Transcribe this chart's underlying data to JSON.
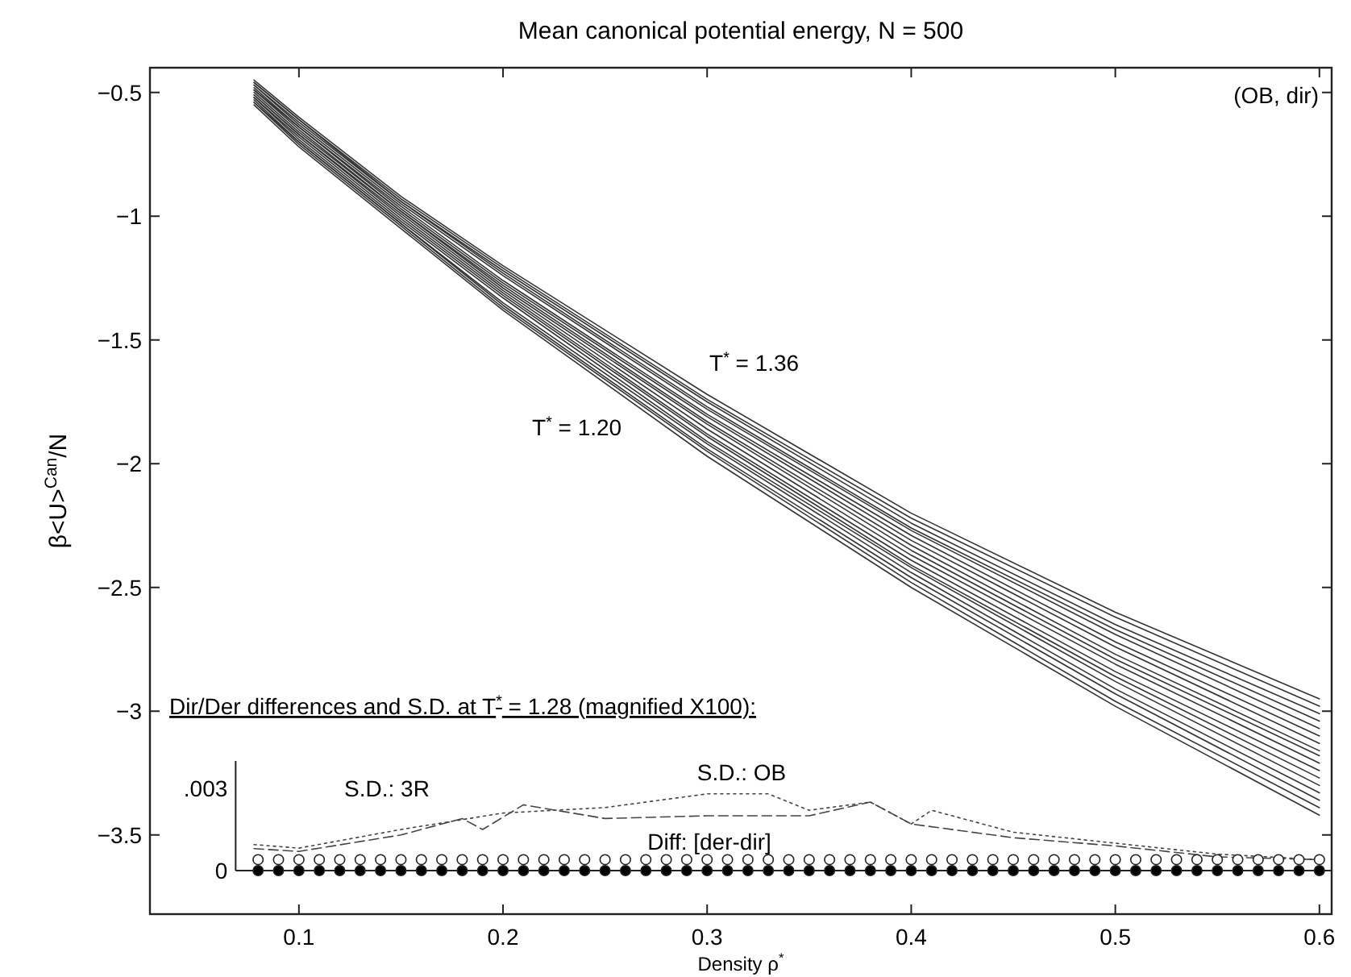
{
  "chart_data": [
    {
      "type": "line",
      "title": "Mean canonical potential energy, N = 500",
      "xlabel": "Density ρ$^{*}$",
      "ylabel": "β<U>$^{Can}$/N",
      "x": [
        0.078,
        0.1,
        0.15,
        0.2,
        0.3,
        0.4,
        0.5,
        0.6
      ],
      "xlim": [
        0.027,
        0.606
      ],
      "ylim": [
        -3.82,
        -0.4
      ],
      "xticks": [
        0.1,
        0.2,
        0.3,
        0.4,
        0.5,
        0.6
      ],
      "yticks": [
        {
          "value": -0.5,
          "label": "−0.5"
        },
        {
          "value": -1,
          "label": "−1"
        },
        {
          "value": -1.5,
          "label": "−1.5"
        },
        {
          "value": -2,
          "label": "−2"
        },
        {
          "value": -2.5,
          "label": "−2.5"
        },
        {
          "value": -3,
          "label": "−3"
        },
        {
          "value": -3.5,
          "label": "−3.5"
        }
      ],
      "grid": false,
      "line_style": "solid",
      "marker": "none",
      "annotations": [
        "(OB, dir)",
        "T$^{*}$ = 1.36",
        "T$^{*}$ = 1.20"
      ],
      "series": [
        {
          "color": "#333333",
          "values": [
            -0.55,
            -0.72,
            -1.05,
            -1.38,
            -1.97,
            -2.5,
            -2.98,
            -3.42
          ]
        },
        {
          "color": "#333333",
          "values": [
            -0.54,
            -0.71,
            -1.04,
            -1.37,
            -1.95,
            -2.48,
            -2.96,
            -3.39
          ]
        },
        {
          "color": "#333333",
          "values": [
            -0.54,
            -0.7,
            -1.03,
            -1.36,
            -1.94,
            -2.46,
            -2.93,
            -3.36
          ]
        },
        {
          "color": "#333333",
          "values": [
            -0.53,
            -0.7,
            -1.03,
            -1.35,
            -1.92,
            -2.44,
            -2.91,
            -3.33
          ]
        },
        {
          "color": "#333333",
          "values": [
            -0.52,
            -0.69,
            -1.02,
            -1.33,
            -1.91,
            -2.42,
            -2.88,
            -3.3
          ]
        },
        {
          "color": "#333333",
          "values": [
            -0.52,
            -0.68,
            -1.01,
            -1.32,
            -1.89,
            -2.41,
            -2.86,
            -3.27
          ]
        },
        {
          "color": "#333333",
          "values": [
            -0.51,
            -0.67,
            -1.0,
            -1.31,
            -1.88,
            -2.39,
            -2.84,
            -3.24
          ]
        },
        {
          "color": "#333333",
          "values": [
            -0.51,
            -0.67,
            -0.99,
            -1.3,
            -1.86,
            -2.37,
            -2.81,
            -3.21
          ]
        },
        {
          "color": "#333333",
          "values": [
            -0.5,
            -0.66,
            -0.98,
            -1.29,
            -1.84,
            -2.35,
            -2.79,
            -3.18
          ]
        },
        {
          "color": "#333333",
          "values": [
            -0.49,
            -0.65,
            -0.98,
            -1.28,
            -1.83,
            -2.33,
            -2.77,
            -3.16
          ]
        },
        {
          "color": "#333333",
          "values": [
            -0.49,
            -0.64,
            -0.97,
            -1.27,
            -1.81,
            -2.31,
            -2.74,
            -3.13
          ]
        },
        {
          "color": "#333333",
          "values": [
            -0.48,
            -0.64,
            -0.96,
            -1.26,
            -1.8,
            -2.29,
            -2.72,
            -3.1
          ]
        },
        {
          "color": "#333333",
          "values": [
            -0.47,
            -0.63,
            -0.95,
            -1.24,
            -1.78,
            -2.27,
            -2.69,
            -3.07
          ]
        },
        {
          "color": "#333333",
          "values": [
            -0.47,
            -0.62,
            -0.94,
            -1.23,
            -1.77,
            -2.26,
            -2.67,
            -3.04
          ]
        },
        {
          "color": "#333333",
          "values": [
            -0.46,
            -0.61,
            -0.94,
            -1.22,
            -1.75,
            -2.24,
            -2.65,
            -3.01
          ]
        },
        {
          "color": "#333333",
          "values": [
            -0.46,
            -0.61,
            -0.93,
            -1.21,
            -1.74,
            -2.22,
            -2.62,
            -2.98
          ]
        },
        {
          "color": "#333333",
          "values": [
            -0.45,
            -0.6,
            -0.92,
            -1.2,
            -1.72,
            -2.2,
            -2.6,
            -2.95
          ]
        }
      ]
    },
    {
      "type": "line",
      "title": "Dir/Der differences and S.D. at T$^{*}$ = 1.28 (magnified X100):",
      "xlim": [
        0.069,
        0.606
      ],
      "xticks": [
        0.1,
        0.2,
        0.3,
        0.4,
        0.5,
        0.6
      ],
      "ylim": [
        0,
        0.004
      ],
      "yticks": [
        0,
        {
          "value": 0.003,
          "label": ".003"
        }
      ],
      "tick_labels": "y",
      "grid": false,
      "marker": "none",
      "series": [
        {
          "name": "S.D.: 3R",
          "color": "#444444",
          "line_style": "dashed",
          "x": [
            0.078,
            0.1,
            0.15,
            0.18,
            0.19,
            0.21,
            0.25,
            0.3,
            0.35,
            0.38,
            0.4,
            0.45,
            0.5,
            0.55,
            0.6
          ],
          "values": [
            0.0008,
            0.0007,
            0.0013,
            0.0019,
            0.0015,
            0.0024,
            0.0019,
            0.002,
            0.002,
            0.0025,
            0.0017,
            0.0012,
            0.0009,
            0.0005,
            0.0004
          ]
        },
        {
          "name": "S.D.: OB",
          "color": "#444444",
          "line_style": "dotted",
          "x": [
            0.078,
            0.1,
            0.15,
            0.2,
            0.25,
            0.3,
            0.33,
            0.35,
            0.38,
            0.4,
            0.41,
            0.45,
            0.5,
            0.55,
            0.6
          ],
          "values": [
            0.00095,
            0.00082,
            0.0015,
            0.0021,
            0.0023,
            0.0028,
            0.0028,
            0.0022,
            0.0025,
            0.0017,
            0.0022,
            0.0014,
            0.001,
            0.0006,
            0.0004
          ]
        },
        {
          "type": "scatter",
          "color": "#ffffff",
          "marker": "circle",
          "x": [
            0.08,
            0.09,
            0.1,
            0.11,
            0.12,
            0.13,
            0.14,
            0.15,
            0.16,
            0.17,
            0.18,
            0.19,
            0.2,
            0.21,
            0.22,
            0.23,
            0.24,
            0.25,
            0.26,
            0.27,
            0.28,
            0.29,
            0.3,
            0.31,
            0.32,
            0.33,
            0.34,
            0.35,
            0.36,
            0.37,
            0.38,
            0.39,
            0.4,
            0.41,
            0.42,
            0.43,
            0.44,
            0.45,
            0.46,
            0.47,
            0.48,
            0.49,
            0.5,
            0.51,
            0.52,
            0.53,
            0.54,
            0.55,
            0.56,
            0.57,
            0.58,
            0.59,
            0.6
          ],
          "values": [
            0.0004,
            0.0004,
            0.0004,
            0.0004,
            0.0004,
            0.0004,
            0.0004,
            0.0004,
            0.0004,
            0.0004,
            0.0004,
            0.0004,
            0.0004,
            0.0004,
            0.0004,
            0.0004,
            0.0004,
            0.0004,
            0.0004,
            0.0004,
            0.0004,
            0.0004,
            0.0004,
            0.0004,
            0.0004,
            0.0004,
            0.0004,
            0.0004,
            0.0004,
            0.0004,
            0.0004,
            0.0004,
            0.0004,
            0.0004,
            0.0004,
            0.0004,
            0.0004,
            0.0004,
            0.0004,
            0.0004,
            0.0004,
            0.0004,
            0.0004,
            0.0004,
            0.0004,
            0.0004,
            0.0004,
            0.0004,
            0.0004,
            0.0004,
            0.0004,
            0.0004,
            0.0004
          ]
        },
        {
          "name": "Diff: [der-dir]",
          "type": "scatter",
          "color": "#000000",
          "marker": "circle",
          "x": [
            0.08,
            0.09,
            0.1,
            0.11,
            0.12,
            0.13,
            0.14,
            0.15,
            0.16,
            0.17,
            0.18,
            0.19,
            0.2,
            0.21,
            0.22,
            0.23,
            0.24,
            0.25,
            0.26,
            0.27,
            0.28,
            0.29,
            0.3,
            0.31,
            0.32,
            0.33,
            0.34,
            0.35,
            0.36,
            0.37,
            0.38,
            0.39,
            0.4,
            0.41,
            0.42,
            0.43,
            0.44,
            0.45,
            0.46,
            0.47,
            0.48,
            0.49,
            0.5,
            0.51,
            0.52,
            0.53,
            0.54,
            0.55,
            0.56,
            0.57,
            0.58,
            0.59,
            0.6
          ],
          "values": [
            0,
            0,
            0,
            0,
            0,
            0,
            0,
            0,
            0,
            0,
            0,
            0,
            0,
            0,
            0,
            0,
            0,
            0,
            0,
            0,
            0,
            0,
            0,
            0,
            0,
            0,
            0,
            0,
            0,
            0,
            0,
            0,
            0,
            0,
            0,
            0,
            0,
            0,
            0,
            0,
            0,
            0,
            0,
            0,
            0,
            0,
            0,
            0,
            0,
            0,
            0,
            0,
            0
          ]
        }
      ]
    }
  ]
}
